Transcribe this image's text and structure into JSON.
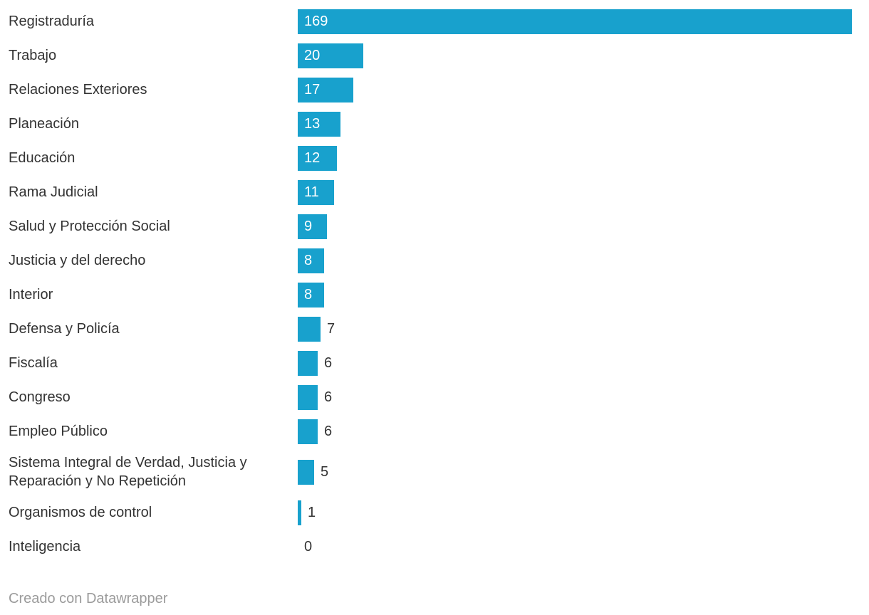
{
  "chart_data": {
    "type": "bar",
    "orientation": "horizontal",
    "categories": [
      "Registraduría",
      "Trabajo",
      "Relaciones Exteriores",
      "Planeación",
      "Educación",
      "Rama Judicial",
      "Salud y Protección Social",
      "Justicia y del derecho",
      "Interior",
      "Defensa y Policía",
      "Fiscalía",
      "Congreso",
      "Empleo Público",
      "Sistema Integral de Verdad, Justicia y Reparación y No Repetición",
      "Organismos de control",
      "Inteligencia"
    ],
    "values": [
      169,
      20,
      17,
      13,
      12,
      11,
      9,
      8,
      8,
      7,
      6,
      6,
      6,
      5,
      1,
      0
    ],
    "title": "",
    "xlabel": "",
    "ylabel": "",
    "xlim": [
      0,
      169
    ],
    "grid": false,
    "legend": false,
    "bar_color": "#18a1cd",
    "label_color": "#333333",
    "value_inside_color": "#ffffff",
    "value_inside_threshold": 8
  },
  "footer": {
    "credit": "Creado con Datawrapper"
  }
}
